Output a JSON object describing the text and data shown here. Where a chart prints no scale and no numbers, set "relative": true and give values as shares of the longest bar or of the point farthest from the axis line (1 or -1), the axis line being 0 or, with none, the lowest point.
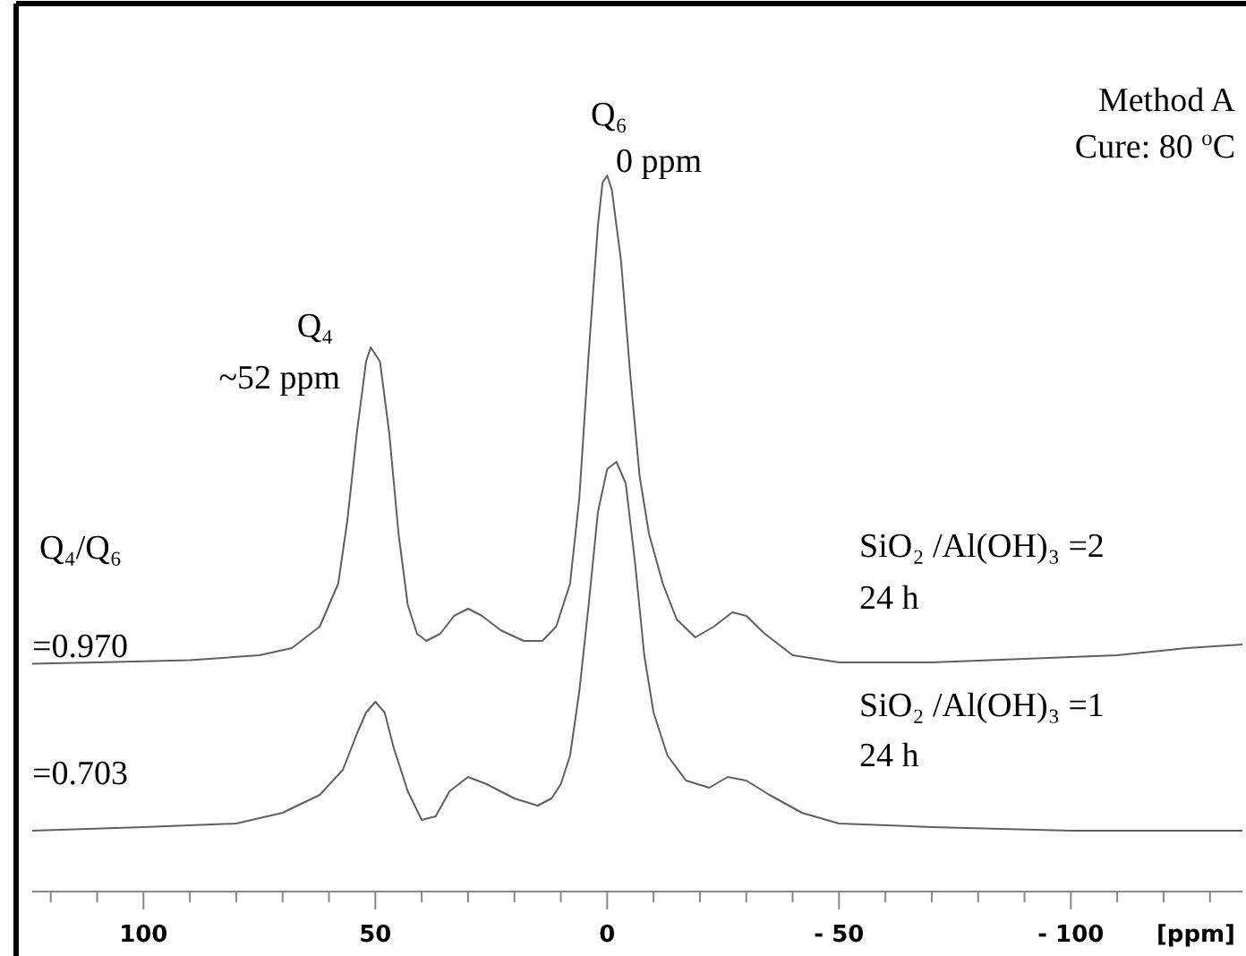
{
  "chart_data": {
    "type": "line",
    "relative": true,
    "xlabel": "[ppm]",
    "xlim": [
      124,
      -137
    ],
    "xticks": [
      {
        "value": 120,
        "label": null
      },
      {
        "value": 110,
        "label": null
      },
      100,
      {
        "value": 90,
        "label": null
      },
      {
        "value": 80,
        "label": null
      },
      {
        "value": 70,
        "label": null
      },
      {
        "value": 60,
        "label": null
      },
      50,
      {
        "value": 40,
        "label": null
      },
      {
        "value": 30,
        "label": null
      },
      {
        "value": 20,
        "label": null
      },
      {
        "value": 10,
        "label": null
      },
      0,
      {
        "value": -10,
        "label": null
      },
      {
        "value": -20,
        "label": null
      },
      {
        "value": -30,
        "label": null
      },
      {
        "value": -40,
        "label": null
      },
      {
        "value": -50,
        "label": "- 50"
      },
      {
        "value": -60,
        "label": null
      },
      {
        "value": -70,
        "label": null
      },
      {
        "value": -80,
        "label": null
      },
      {
        "value": -90,
        "label": null
      },
      {
        "value": -100,
        "label": "- 100"
      },
      {
        "value": -110,
        "label": null
      },
      {
        "value": -120,
        "label": null
      },
      {
        "value": -130,
        "label": null
      }
    ],
    "tick_labels": "x",
    "grid": false,
    "marker": "none",
    "line_style": "solid",
    "annotations": [
      "Method A",
      "Cure:  80 $^{o}$C",
      "Q₆",
      "0 ppm",
      "Q₄",
      "~52 ppm",
      "Q₄/Q₆",
      "=0.970",
      "=0.703",
      "SiO₂ /Al(OH)₃ =2",
      "24  h",
      "SiO₂ /Al(OH)₃ =1",
      "24 h"
    ],
    "series": [
      {
        "color": "#606060",
        "x": [
          124,
          110,
          90,
          75,
          68,
          62,
          58,
          56,
          54,
          52,
          51,
          49,
          47,
          45,
          43,
          41,
          39,
          36,
          33,
          30,
          27,
          23,
          18,
          14,
          11,
          8,
          6,
          4,
          2,
          1,
          0,
          -1,
          -3,
          -5,
          -7,
          -9,
          -12,
          -15,
          -19,
          -23,
          -27,
          -30,
          -34,
          -40,
          -50,
          -70,
          -90,
          -110,
          -125,
          -137
        ],
        "values": [
          0.318,
          0.32,
          0.323,
          0.33,
          0.34,
          0.37,
          0.43,
          0.52,
          0.64,
          0.74,
          0.76,
          0.74,
          0.64,
          0.5,
          0.4,
          0.36,
          0.35,
          0.36,
          0.385,
          0.395,
          0.385,
          0.365,
          0.35,
          0.35,
          0.37,
          0.43,
          0.55,
          0.75,
          0.93,
          0.99,
          1.0,
          0.98,
          0.88,
          0.72,
          0.58,
          0.5,
          0.43,
          0.38,
          0.355,
          0.37,
          0.39,
          0.385,
          0.36,
          0.33,
          0.32,
          0.32,
          0.325,
          0.33,
          0.34,
          0.345
        ]
      },
      {
        "color": "#606060",
        "x": [
          124,
          100,
          80,
          70,
          62,
          57,
          54,
          52,
          50,
          48,
          46,
          43,
          40,
          37,
          34,
          30,
          26,
          20,
          15,
          12,
          10,
          8,
          6,
          4,
          2,
          0,
          -2,
          -4,
          -6,
          -8,
          -10,
          -13,
          -17,
          -22,
          -26,
          -30,
          -35,
          -42,
          -50,
          -70,
          -100,
          -137
        ],
        "values": [
          0.085,
          0.09,
          0.095,
          0.11,
          0.135,
          0.17,
          0.22,
          0.25,
          0.265,
          0.25,
          0.2,
          0.14,
          0.1,
          0.105,
          0.14,
          0.16,
          0.15,
          0.13,
          0.12,
          0.13,
          0.15,
          0.19,
          0.28,
          0.4,
          0.53,
          0.59,
          0.6,
          0.57,
          0.46,
          0.33,
          0.25,
          0.19,
          0.155,
          0.145,
          0.16,
          0.155,
          0.135,
          0.11,
          0.095,
          0.09,
          0.085,
          0.085
        ]
      }
    ]
  }
}
